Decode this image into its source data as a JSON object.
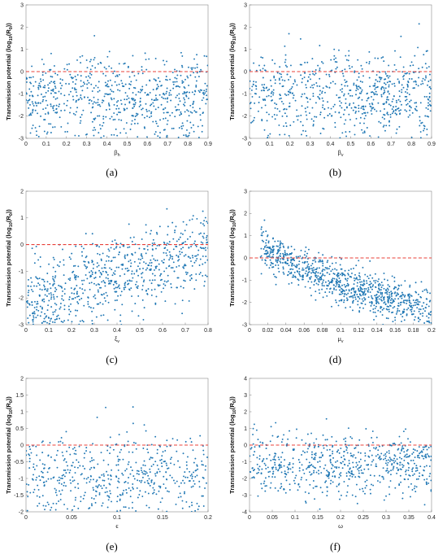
{
  "panels": [
    {
      "caption": "(a)",
      "chart_data": {
        "type": "scatter",
        "ylabel": "Transmission potential (log10(R0))",
        "xlabel": "βh",
        "xlim": [
          0,
          0.9
        ],
        "ylim": [
          -3,
          3
        ],
        "xticks": [
          0,
          0.1,
          0.2,
          0.3,
          0.4,
          0.5,
          0.6,
          0.7,
          0.8,
          0.9
        ],
        "xtick_labels": [
          "0",
          "0.1",
          "0.2",
          "0.3",
          "0.4",
          "0.5",
          "0.6",
          "0.7",
          "0.8",
          "0.9"
        ],
        "yticks": [
          -3,
          -2,
          -1,
          0,
          1,
          2,
          3
        ],
        "ytick_labels": [
          "-3",
          "-2",
          "-1",
          "0",
          "1",
          "2",
          "3"
        ],
        "threshold_y": 0,
        "n_points": 700,
        "trend": "flat",
        "y_center": -1.1,
        "y_spread": 0.9,
        "point_color": "#1f77b4"
      }
    },
    {
      "caption": "(b)",
      "chart_data": {
        "type": "scatter",
        "ylabel": "Transmission potential (log10(R0))",
        "xlabel": "βv",
        "xlim": [
          0,
          0.9
        ],
        "ylim": [
          -3,
          3
        ],
        "xticks": [
          0,
          0.1,
          0.2,
          0.3,
          0.4,
          0.5,
          0.6,
          0.7,
          0.8,
          0.9
        ],
        "xtick_labels": [
          "0",
          "0.1",
          "0.2",
          "0.3",
          "0.4",
          "0.5",
          "0.6",
          "0.7",
          "0.8",
          "0.9"
        ],
        "yticks": [
          -3,
          -2,
          -1,
          0,
          1,
          2,
          3
        ],
        "ytick_labels": [
          "-3",
          "-2",
          "-1",
          "0",
          "1",
          "2",
          "3"
        ],
        "threshold_y": 0,
        "n_points": 700,
        "trend": "flat",
        "y_center": -1.0,
        "y_spread": 0.95,
        "point_color": "#1f77b4"
      }
    },
    {
      "caption": "(c)",
      "chart_data": {
        "type": "scatter",
        "ylabel": "Transmission potential (log10(R0))",
        "xlabel": "ξv",
        "xlim": [
          0,
          0.8
        ],
        "ylim": [
          -3,
          2
        ],
        "xticks": [
          0,
          0.1,
          0.2,
          0.3,
          0.4,
          0.5,
          0.6,
          0.7,
          0.8
        ],
        "xtick_labels": [
          "0",
          "0.1",
          "0.2",
          "0.3",
          "0.4",
          "0.5",
          "0.6",
          "0.7",
          "0.8"
        ],
        "yticks": [
          -3,
          -2,
          -1,
          0,
          1,
          2
        ],
        "ytick_labels": [
          "-3",
          "-2",
          "-1",
          "0",
          "1",
          "2"
        ],
        "threshold_y": 0,
        "n_points": 750,
        "trend": "increasing",
        "y_start": -2.1,
        "y_end": -0.2,
        "y_spread": 0.75,
        "point_color": "#1f77b4"
      }
    },
    {
      "caption": "(d)",
      "chart_data": {
        "type": "scatter",
        "ylabel": "Transmission potential (log10(R0))",
        "xlabel": "μv",
        "xlim": [
          0,
          0.2
        ],
        "ylim": [
          -3,
          3
        ],
        "xticks": [
          0,
          0.02,
          0.04,
          0.06,
          0.08,
          0.1,
          0.12,
          0.14,
          0.16,
          0.18,
          0.2
        ],
        "xtick_labels": [
          "0",
          "0.02",
          "0.04",
          "0.06",
          "0.08",
          "0.1",
          "0.12",
          "0.14",
          "0.16",
          "0.18",
          "0.2"
        ],
        "yticks": [
          -3,
          -2,
          -1,
          0,
          1,
          2,
          3
        ],
        "ytick_labels": [
          "-3",
          "-2",
          "-1",
          "0",
          "1",
          "2",
          "3"
        ],
        "threshold_y": 0,
        "n_points": 900,
        "x_min_data": 0.012,
        "trend": "decreasing",
        "y_start": 1.6,
        "y_end": -2.3,
        "y_spread": 0.45,
        "point_color": "#1f77b4"
      }
    },
    {
      "caption": "(e)",
      "chart_data": {
        "type": "scatter",
        "ylabel": "Transmission potential (log10(R0))",
        "xlabel": "ϵ",
        "xlim": [
          0,
          0.2
        ],
        "ylim": [
          -2,
          2
        ],
        "xticks": [
          0,
          0.05,
          0.1,
          0.15,
          0.2
        ],
        "xtick_labels": [
          "0",
          "0.05",
          "0.1",
          "0.15",
          "0.2"
        ],
        "yticks": [
          -2,
          -1.5,
          -1,
          -0.5,
          0,
          0.5,
          1,
          1.5,
          2
        ],
        "ytick_labels": [
          "-2",
          "-1.5",
          "-1",
          "-0.5",
          "0",
          "0.5",
          "1",
          "1.5",
          "2"
        ],
        "threshold_y": 0,
        "n_points": 520,
        "trend": "flat",
        "y_center": -0.9,
        "y_spread": 0.6,
        "point_color": "#1f77b4"
      }
    },
    {
      "caption": "(f)",
      "chart_data": {
        "type": "scatter",
        "ylabel": "Transmission potential (log10(R0))",
        "xlabel": "ω",
        "xlim": [
          0,
          0.4
        ],
        "ylim": [
          -4,
          4
        ],
        "xticks": [
          0,
          0.05,
          0.1,
          0.15,
          0.2,
          0.25,
          0.3,
          0.35,
          0.4
        ],
        "xtick_labels": [
          "0",
          "0.05",
          "0.1",
          "0.15",
          "0.2",
          "0.25",
          "0.3",
          "0.35",
          "0.4"
        ],
        "yticks": [
          -4,
          -3,
          -2,
          -1,
          0,
          1,
          2,
          3,
          4
        ],
        "ytick_labels": [
          "-4",
          "-3",
          "-2",
          "-1",
          "0",
          "1",
          "2",
          "3",
          "4"
        ],
        "threshold_y": 0,
        "n_points": 650,
        "trend": "flat",
        "y_center": -1.2,
        "y_spread": 0.95,
        "point_color": "#1f77b4"
      }
    }
  ],
  "colors": {
    "points": "#1f77b4",
    "threshold": "#e8403a",
    "axis": "#444444"
  }
}
